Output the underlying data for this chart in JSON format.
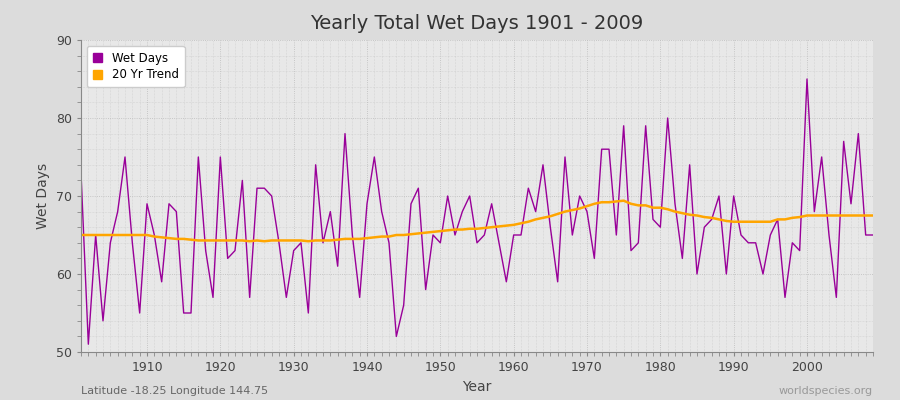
{
  "title": "Yearly Total Wet Days 1901 - 2009",
  "xlabel": "Year",
  "ylabel": "Wet Days",
  "xlim": [
    1901,
    2009
  ],
  "ylim": [
    50,
    90
  ],
  "yticks": [
    50,
    60,
    70,
    80,
    90
  ],
  "wet_days_color": "#990099",
  "trend_color": "#FFA500",
  "bg_color": "#E8E8E8",
  "fig_bg_color": "#DCDCDC",
  "subtitle_left": "Latitude -18.25 Longitude 144.75",
  "subtitle_right": "worldspecies.org",
  "legend_wet": "Wet Days",
  "legend_trend": "20 Yr Trend",
  "years": [
    1901,
    1902,
    1903,
    1904,
    1905,
    1906,
    1907,
    1908,
    1909,
    1910,
    1911,
    1912,
    1913,
    1914,
    1915,
    1916,
    1917,
    1918,
    1919,
    1920,
    1921,
    1922,
    1923,
    1924,
    1925,
    1926,
    1927,
    1928,
    1929,
    1930,
    1931,
    1932,
    1933,
    1934,
    1935,
    1936,
    1937,
    1938,
    1939,
    1940,
    1941,
    1942,
    1943,
    1944,
    1945,
    1946,
    1947,
    1948,
    1949,
    1950,
    1951,
    1952,
    1953,
    1954,
    1955,
    1956,
    1957,
    1958,
    1959,
    1960,
    1961,
    1962,
    1963,
    1964,
    1965,
    1966,
    1967,
    1968,
    1969,
    1970,
    1971,
    1972,
    1973,
    1974,
    1975,
    1976,
    1977,
    1978,
    1979,
    1980,
    1981,
    1982,
    1983,
    1984,
    1985,
    1986,
    1987,
    1988,
    1989,
    1990,
    1991,
    1992,
    1993,
    1994,
    1995,
    1996,
    1997,
    1998,
    1999,
    2000,
    2001,
    2002,
    2003,
    2004,
    2005,
    2006,
    2007,
    2008,
    2009
  ],
  "wet_days": [
    73,
    51,
    65,
    54,
    64,
    68,
    75,
    64,
    55,
    69,
    65,
    59,
    69,
    68,
    55,
    55,
    75,
    63,
    57,
    75,
    62,
    63,
    72,
    57,
    71,
    71,
    70,
    64,
    57,
    63,
    64,
    55,
    74,
    64,
    68,
    61,
    78,
    65,
    57,
    69,
    75,
    68,
    64,
    52,
    56,
    69,
    71,
    58,
    65,
    64,
    70,
    65,
    68,
    70,
    64,
    65,
    69,
    64,
    59,
    65,
    65,
    71,
    68,
    74,
    66,
    59,
    75,
    65,
    70,
    68,
    62,
    76,
    76,
    65,
    79,
    63,
    64,
    79,
    67,
    66,
    80,
    69,
    62,
    74,
    60,
    66,
    67,
    70,
    60,
    70,
    65,
    64,
    64,
    60,
    65,
    67,
    57,
    64,
    63,
    85,
    68,
    75,
    65,
    57,
    77,
    69,
    78,
    65,
    65
  ],
  "trend": [
    65.0,
    65.0,
    65.0,
    65.0,
    65.0,
    65.0,
    65.0,
    65.0,
    65.0,
    65.0,
    64.8,
    64.7,
    64.6,
    64.5,
    64.5,
    64.4,
    64.3,
    64.3,
    64.3,
    64.3,
    64.3,
    64.3,
    64.3,
    64.2,
    64.3,
    64.2,
    64.3,
    64.3,
    64.3,
    64.3,
    64.3,
    64.2,
    64.3,
    64.3,
    64.3,
    64.4,
    64.5,
    64.5,
    64.5,
    64.6,
    64.7,
    64.8,
    64.8,
    65.0,
    65.0,
    65.1,
    65.2,
    65.3,
    65.4,
    65.5,
    65.6,
    65.7,
    65.7,
    65.8,
    65.8,
    65.9,
    66.0,
    66.1,
    66.2,
    66.3,
    66.5,
    66.7,
    67.0,
    67.2,
    67.4,
    67.7,
    68.0,
    68.2,
    68.4,
    68.7,
    69.0,
    69.2,
    69.2,
    69.3,
    69.4,
    69.0,
    68.8,
    68.8,
    68.5,
    68.5,
    68.3,
    68.0,
    67.8,
    67.6,
    67.5,
    67.3,
    67.2,
    67.0,
    66.8,
    66.7,
    66.7,
    66.7,
    66.7,
    66.7,
    66.7,
    67.0,
    67.0,
    67.2,
    67.3,
    67.5,
    67.5,
    67.5,
    67.5,
    67.5,
    67.5,
    67.5,
    67.5,
    67.5,
    67.5
  ]
}
